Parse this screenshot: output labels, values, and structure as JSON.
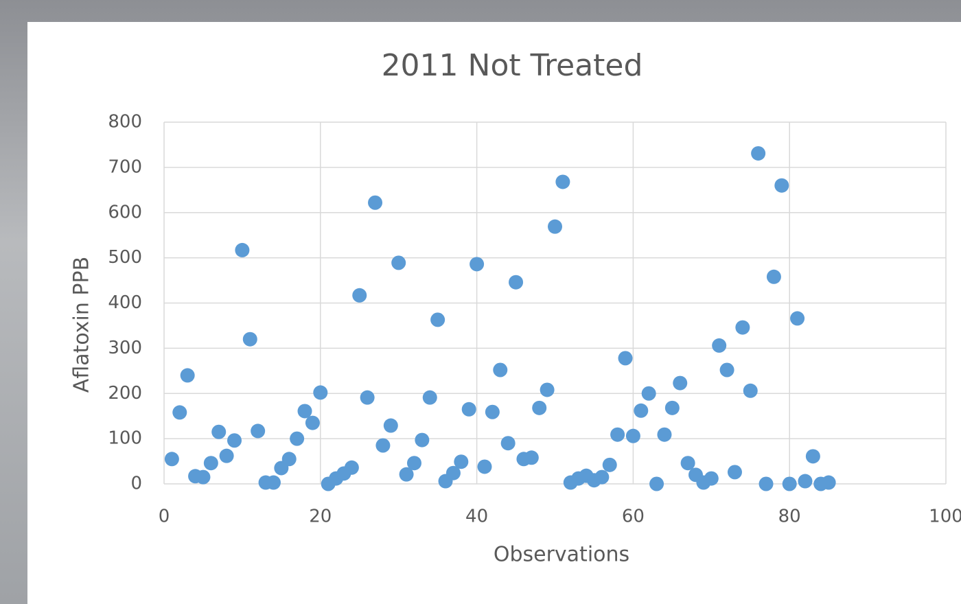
{
  "chart_data": {
    "type": "scatter",
    "title": "2011 Not Treated",
    "x_label": "Observations",
    "y_label": "Aflatoxin PPB",
    "series": [
      {
        "name": "Aflatoxin",
        "color": "#5b9bd5",
        "x": [
          1,
          2,
          3,
          4,
          5,
          6,
          7,
          8,
          9,
          10,
          11,
          12,
          13,
          14,
          15,
          16,
          17,
          18,
          19,
          20,
          21,
          22,
          23,
          24,
          25,
          26,
          27,
          28,
          29,
          30,
          31,
          32,
          33,
          34,
          35,
          36,
          37,
          38,
          39,
          40,
          41,
          42,
          43,
          44,
          45,
          46,
          47,
          48,
          49,
          50,
          51,
          52,
          53,
          54,
          55,
          56,
          57,
          58,
          59,
          60,
          61,
          62,
          63,
          64,
          65,
          66,
          67,
          68,
          69,
          70,
          71,
          72,
          73,
          74,
          75,
          76,
          77,
          78,
          79,
          80,
          81,
          82,
          83,
          84,
          85
        ],
        "values": [
          55,
          158,
          240,
          17,
          15,
          46,
          115,
          62,
          96,
          517,
          320,
          117,
          3,
          3,
          35,
          55,
          100,
          161,
          135,
          202,
          0,
          12,
          23,
          36,
          417,
          191,
          622,
          85,
          129,
          489,
          21,
          46,
          97,
          191,
          363,
          6,
          24,
          49,
          165,
          486,
          38,
          159,
          252,
          90,
          446,
          55,
          58,
          168,
          208,
          569,
          668,
          3,
          12,
          18,
          8,
          15,
          42,
          109,
          278,
          106,
          162,
          200,
          0,
          109,
          168,
          223,
          46,
          20,
          3,
          12,
          306,
          252,
          26,
          346,
          206,
          731,
          0,
          458,
          660,
          0,
          366,
          6,
          61,
          0,
          3
        ]
      }
    ],
    "xlim": [
      0,
      100
    ],
    "xticks": [
      0,
      20,
      40,
      60,
      80,
      100
    ],
    "ylim": [
      0,
      800
    ],
    "yticks": [
      0,
      100,
      200,
      300,
      400,
      500,
      600,
      700,
      800
    ],
    "grid": true
  }
}
